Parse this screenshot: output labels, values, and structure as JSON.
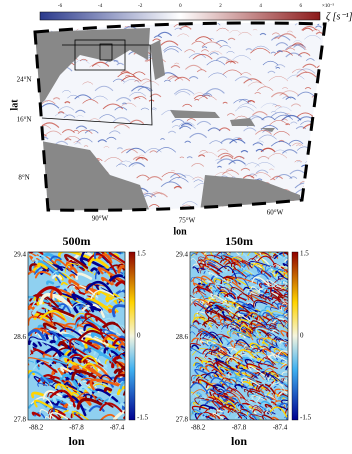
{
  "map": {
    "colorbar": {
      "ticks": [
        "-6",
        "-4",
        "-2",
        "0",
        "2",
        "4",
        "6"
      ],
      "exponent": "×10⁻⁵",
      "label": "ζ [s⁻¹]"
    },
    "lat_ticks": [
      "24°N",
      "16°N",
      "8°N"
    ],
    "lon_ticks": [
      "90°W",
      "75°W",
      "60°W"
    ],
    "xlabel": "lon",
    "ylabel": "lat"
  },
  "panels": [
    {
      "title": "500m",
      "yticks": [
        "29.4",
        "28.6",
        "27.8"
      ],
      "xticks": [
        "-88.2",
        "-87.8",
        "-87.4"
      ],
      "xlabel": "lon",
      "cbar_ticks": [
        "1.5",
        "0",
        "-1.5"
      ]
    },
    {
      "title": "150m",
      "yticks": [
        "29.4",
        "28.6",
        "27.8"
      ],
      "xticks": [
        "-88.2",
        "-87.8",
        "-87.4"
      ],
      "xlabel": "lon",
      "cbar_ticks": [
        "1.5",
        "0",
        "-1.5"
      ]
    }
  ]
}
